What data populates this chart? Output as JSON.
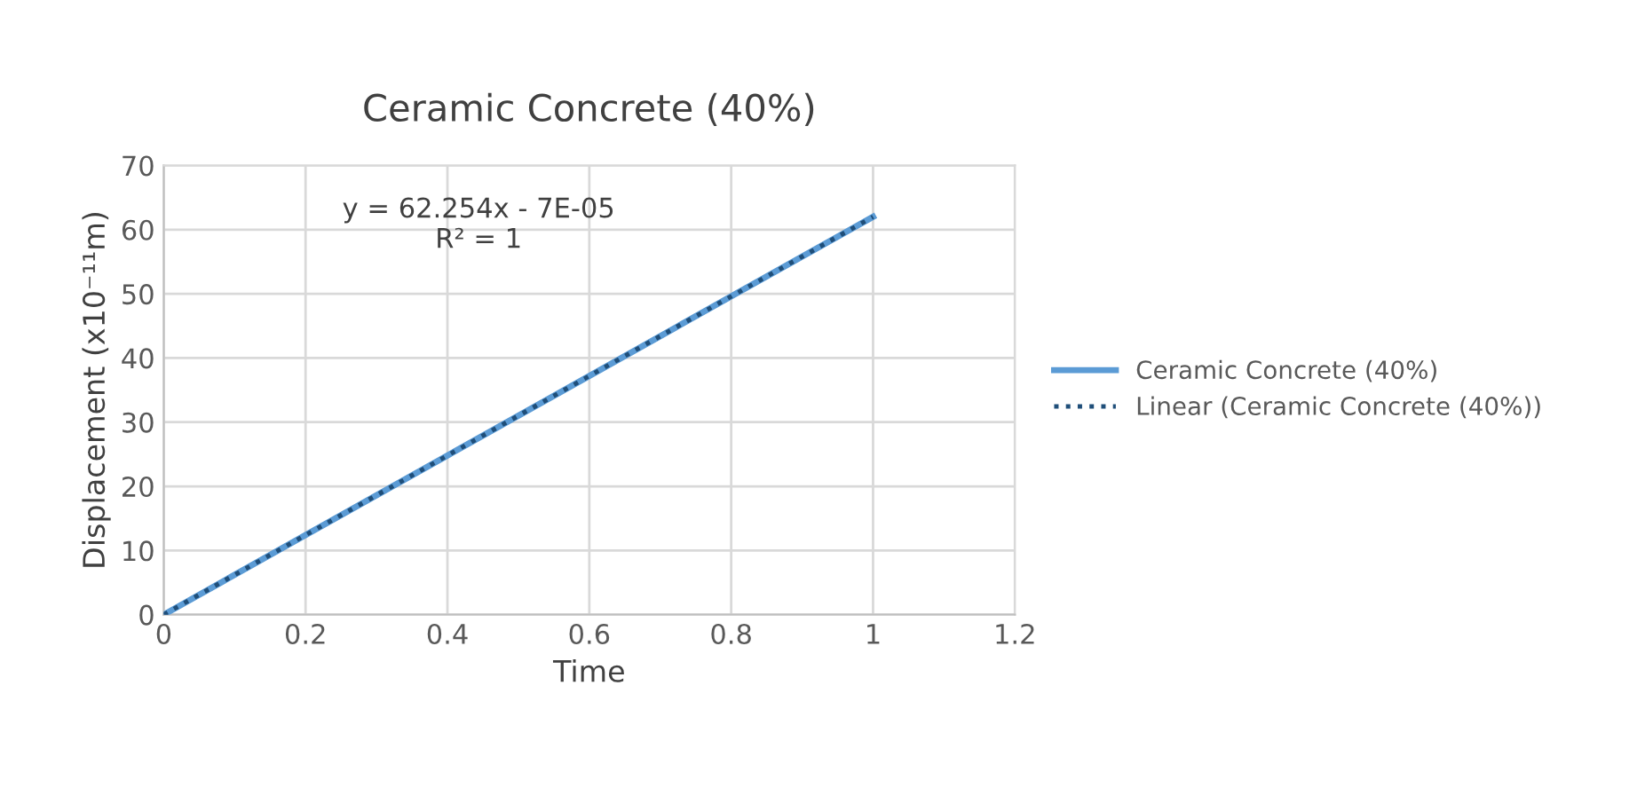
{
  "chart_data": {
    "type": "line",
    "title": "Ceramic Concrete (40%)",
    "xlabel": "Time",
    "ylabel": "Displacement (x10⁻¹¹m)",
    "annotations": [
      "y = 62.254x - 7E-05\nR² = 1"
    ],
    "x": [
      0,
      1
    ],
    "series": [
      {
        "name": "Ceramic Concrete (40%)",
        "color": "#5b9bd5",
        "values": [
          0,
          62
        ],
        "line_style": "solid"
      },
      {
        "name": "Linear (Ceramic Concrete (40%))",
        "color": "#1f4e79",
        "values": [
          0,
          62
        ],
        "line_style": "dotted"
      }
    ],
    "xlim": [
      0,
      1.2
    ],
    "xticks": [
      0,
      0.2,
      0.4,
      0.6,
      0.8,
      1,
      1.2
    ],
    "ylim": [
      0,
      70
    ],
    "yticks": [
      0,
      10,
      20,
      30,
      40,
      50,
      60,
      70
    ],
    "grid": true,
    "legend": "right",
    "marker": "none"
  }
}
